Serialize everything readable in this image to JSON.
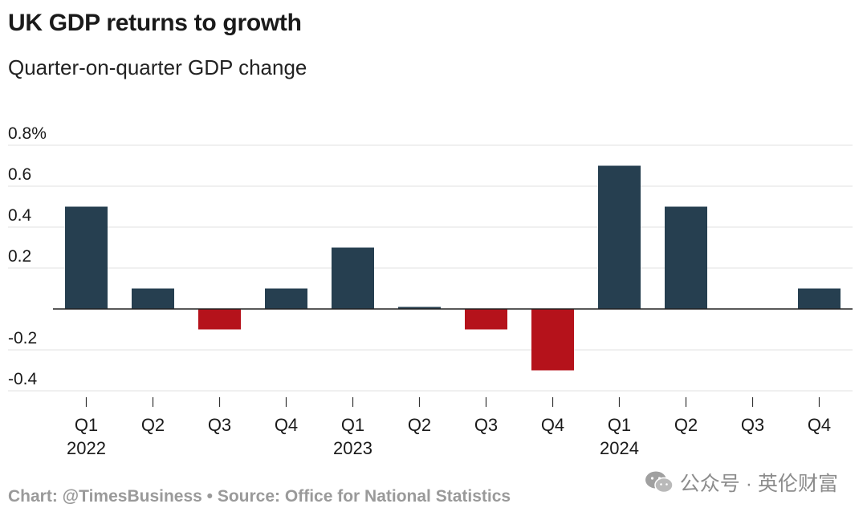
{
  "title": "UK GDP returns to growth",
  "subtitle": "Quarter-on-quarter GDP change",
  "footer": "Chart: @TimesBusiness • Source: Office for National Statistics",
  "watermark": "公众号 · 英伦财富",
  "colors": {
    "positive": "#263f50",
    "negative": "#b5121b",
    "grid": "#e6e6e6",
    "zero_line": "#222222",
    "text": "#1a1a1a"
  },
  "chart_data": {
    "type": "bar",
    "categories": [
      "Q1",
      "Q2",
      "Q3",
      "Q4",
      "Q1",
      "Q2",
      "Q3",
      "Q4",
      "Q1",
      "Q2",
      "Q3",
      "Q4"
    ],
    "year_labels": [
      "2022",
      "",
      "",
      "",
      "2023",
      "",
      "",
      "",
      "2024",
      "",
      "",
      ""
    ],
    "values": [
      0.5,
      0.1,
      -0.1,
      0.1,
      0.3,
      0.01,
      -0.1,
      -0.3,
      0.7,
      0.5,
      0.0,
      0.1
    ],
    "ylim": [
      -0.4,
      0.8
    ],
    "yticks": [
      0.8,
      0.6,
      0.4,
      0.2,
      -0.2,
      -0.4
    ],
    "ytick_labels": [
      "0.8%",
      "0.6",
      "0.4",
      "0.2",
      "-0.2",
      "-0.4"
    ],
    "grid": true,
    "xlabel": "",
    "ylabel": ""
  }
}
